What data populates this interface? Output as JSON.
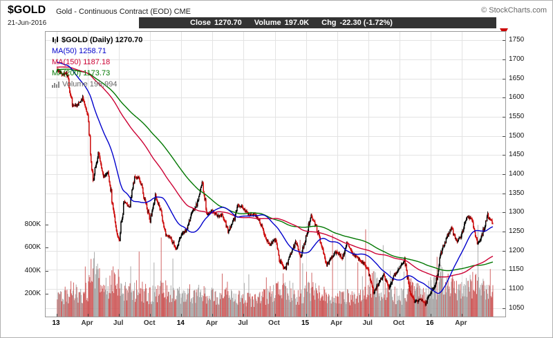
{
  "header": {
    "symbol": "$GOLD",
    "description": "Gold - Continuous Contract (EOD) CME",
    "copyright": "© StockCharts.com",
    "date": "21-Jun-2016",
    "quote_bar": {
      "close_label": "Close",
      "close_value": "1270.70",
      "volume_label": "Volume",
      "volume_value": "197.0K",
      "chg_label": "Chg",
      "chg_value": "-22.30 (-1.72%)"
    }
  },
  "legend": {
    "title": "$GOLD (Daily) 1270.70",
    "ma50": "MA(50) 1258.71",
    "ma150": "MA(150) 1187.18",
    "ma200": "MA(200) 1173.73",
    "volume": "Volume 196,994"
  },
  "icons": {
    "legend_title_icon": "candlestick-icon",
    "legend_volume_icon": "volume-bars-icon",
    "price_direction_icon": "down-triangle-icon"
  },
  "colors": {
    "up": "#000000",
    "down": "#cc0a0a",
    "ma50": "#0000cc",
    "ma150": "#cc0033",
    "ma200": "#007700",
    "vol_up": "#a3a3a3",
    "vol_down": "#cc5555",
    "grid": "#e3e3e3",
    "quote_bar_bg": "#333333",
    "arrow": "#cc0000"
  },
  "chart_data": {
    "type": "candlestick",
    "title": "$GOLD Gold - Continuous Contract (EOD) CME, Daily with MA(50), MA(150), MA(200) overlays and volume",
    "x_start": "Jan-2013",
    "x_end": "21-Jun-2016",
    "grid": true,
    "price_axis": {
      "min": 1028,
      "max": 1772,
      "ticks": [
        1750,
        1700,
        1650,
        1600,
        1550,
        1500,
        1450,
        1400,
        1350,
        1300,
        1250,
        1200,
        1150,
        1100,
        1050
      ]
    },
    "volume_axis": {
      "ticks": [
        {
          "label": "800K",
          "k": 800
        },
        {
          "label": "600K",
          "k": 600
        },
        {
          "label": "400K",
          "k": 400
        },
        {
          "label": "200K",
          "k": 200
        }
      ]
    },
    "x_ticks": [
      {
        "m": 0,
        "label": "13",
        "bold": true
      },
      {
        "m": 3,
        "label": "Apr"
      },
      {
        "m": 6,
        "label": "Jul"
      },
      {
        "m": 9,
        "label": "Oct"
      },
      {
        "m": 12,
        "label": "14",
        "bold": true
      },
      {
        "m": 15,
        "label": "Apr"
      },
      {
        "m": 18,
        "label": "Jul"
      },
      {
        "m": 21,
        "label": "Oct"
      },
      {
        "m": 24,
        "label": "15",
        "bold": true
      },
      {
        "m": 27,
        "label": "Apr"
      },
      {
        "m": 30,
        "label": "Jul"
      },
      {
        "m": 33,
        "label": "Oct"
      },
      {
        "m": 36,
        "label": "16",
        "bold": true
      },
      {
        "m": 39,
        "label": "Apr"
      }
    ],
    "overlays": [
      {
        "name": "MA(50)",
        "window": 50,
        "last_value": 1258.71
      },
      {
        "name": "MA(150)",
        "window": 150,
        "last_value": 1187.18
      },
      {
        "name": "MA(200)",
        "window": 200,
        "last_value": 1173.73
      }
    ],
    "last": {
      "close": 1270.7,
      "change": -22.3,
      "change_pct": -1.72,
      "volume": 196994
    },
    "prepad_close": [
      1640,
      1700
    ],
    "anchors": {
      "interval": "half-month estimates read from chart",
      "close": [
        1675,
        1660,
        1665,
        1580,
        1580,
        1600,
        1555,
        1380,
        1462,
        1394,
        1405,
        1298,
        1225,
        1330,
        1312,
        1395,
        1388,
        1330,
        1282,
        1345,
        1308,
        1242,
        1232,
        1205,
        1242,
        1255,
        1300,
        1322,
        1382,
        1295,
        1305,
        1290,
        1295,
        1250,
        1275,
        1320,
        1310,
        1295,
        1295,
        1282,
        1240,
        1215,
        1232,
        1172,
        1152,
        1190,
        1222,
        1185,
        1235,
        1295,
        1262,
        1210,
        1160,
        1185,
        1200,
        1180,
        1222,
        1192,
        1180,
        1170,
        1145,
        1092,
        1115,
        1135,
        1105,
        1135,
        1155,
        1178,
        1090,
        1065,
        1075,
        1062,
        1090,
        1115,
        1195,
        1232,
        1262,
        1225,
        1240,
        1290,
        1282,
        1215,
        1245,
        1293,
        1270.7
      ],
      "volume_k": [
        190,
        180,
        200,
        230,
        190,
        180,
        230,
        480,
        320,
        260,
        260,
        340,
        300,
        240,
        220,
        230,
        240,
        210,
        190,
        200,
        210,
        230,
        200,
        180,
        200,
        190,
        210,
        190,
        230,
        200,
        180,
        160,
        170,
        190,
        160,
        170,
        160,
        150,
        140,
        150,
        180,
        190,
        200,
        260,
        280,
        220,
        190,
        160,
        220,
        230,
        210,
        200,
        190,
        180,
        180,
        170,
        180,
        170,
        180,
        190,
        280,
        300,
        240,
        220,
        200,
        190,
        190,
        180,
        260,
        240,
        210,
        180,
        260,
        250,
        340,
        300,
        280,
        250,
        240,
        260,
        280,
        300,
        260,
        240,
        197
      ]
    }
  }
}
